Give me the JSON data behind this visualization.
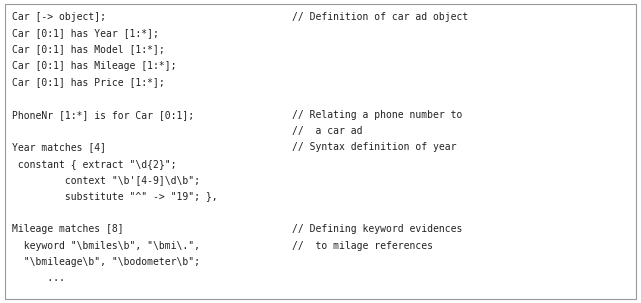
{
  "background_color": "#ffffff",
  "border_color": "#999999",
  "text_color": "#222222",
  "font_family": "monospace",
  "font_size": 7.0,
  "figwidth": 6.41,
  "figheight": 3.03,
  "dpi": 100,
  "comment_col": 0.455,
  "lines": [
    [
      "Car [-> object];",
      "// Definition of car ad object"
    ],
    [
      "Car [0:1] has Year [1:*];",
      ""
    ],
    [
      "Car [0:1] has Model [1:*];",
      ""
    ],
    [
      "Car [0:1] has Mileage [1:*];",
      ""
    ],
    [
      "Car [0:1] has Price [1:*];",
      ""
    ],
    [
      "",
      ""
    ],
    [
      "PhoneNr [1:*] is for Car [0:1];",
      "// Relating a phone number to"
    ],
    [
      "",
      "//  a car ad"
    ],
    [
      "Year matches [4]",
      "// Syntax definition of year"
    ],
    [
      " constant { extract \"\\d{2}\";",
      ""
    ],
    [
      "         context \"\\b'[4-9]\\d\\b\";",
      ""
    ],
    [
      "         substitute \"^\" -> \"19\"; },",
      ""
    ],
    [
      "",
      ""
    ],
    [
      "Mileage matches [8]",
      "// Defining keyword evidences"
    ],
    [
      "  keyword \"\\bmiles\\b\", \"\\bmi\\.\",",
      "//  to milage references"
    ],
    [
      "  \"\\bmileage\\b\", \"\\bodometer\\b\";",
      ""
    ],
    [
      "      ...",
      ""
    ]
  ]
}
